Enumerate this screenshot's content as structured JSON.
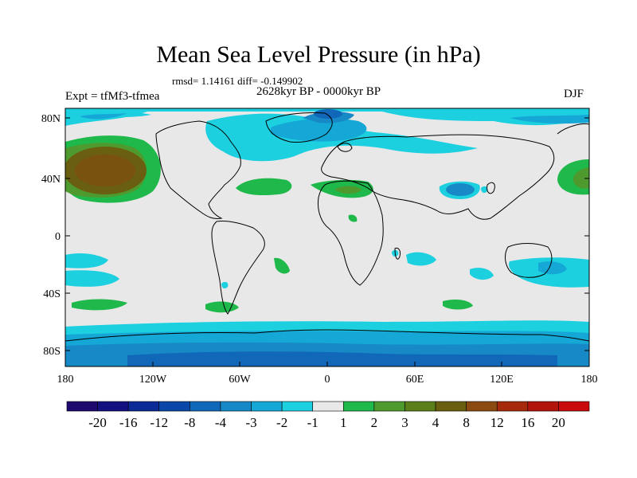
{
  "map": {
    "title": "Mean Sea Level Pressure (in hPa)",
    "stats_line": "rmsd= 1.14161 diff= -0.149902",
    "period": "2628kyr BP - 0000kyr BP",
    "experiment": "Expt = tfMf3-tfmea",
    "season": "DJF",
    "lat_ticks": [
      "80N",
      "40N",
      "0",
      "40S",
      "80S"
    ],
    "lon_ticks": [
      "180",
      "120W",
      "60W",
      "0",
      "60E",
      "120E",
      "180"
    ]
  },
  "colorbar": {
    "labels": [
      "-20",
      "-16",
      "-12",
      "-8",
      "-4",
      "-3",
      "-2",
      "-1",
      "1",
      "2",
      "3",
      "4",
      "8",
      "12",
      "16",
      "20"
    ],
    "colors": [
      "#1e0a6e",
      "#13107f",
      "#0b2a96",
      "#0a47a9",
      "#1167b8",
      "#1689c6",
      "#15a7d6",
      "#1cd0e0",
      "#e8e8e8",
      "#1fb84a",
      "#4f9a2e",
      "#5c7f1c",
      "#6a5f10",
      "#8b4b10",
      "#a52b0c",
      "#b2150a",
      "#c80a0a"
    ]
  },
  "colors": {
    "land": "#e8e8e8",
    "low_light": "#1cd0e0",
    "low_mid": "#15a7d6",
    "low_strong": "#1689c6",
    "low_deep": "#1167b8",
    "high_light": "#1fb84a",
    "high_mid": "#4f9a2e",
    "high_strong": "#6a5f10",
    "high_deep": "#8b4b10"
  }
}
